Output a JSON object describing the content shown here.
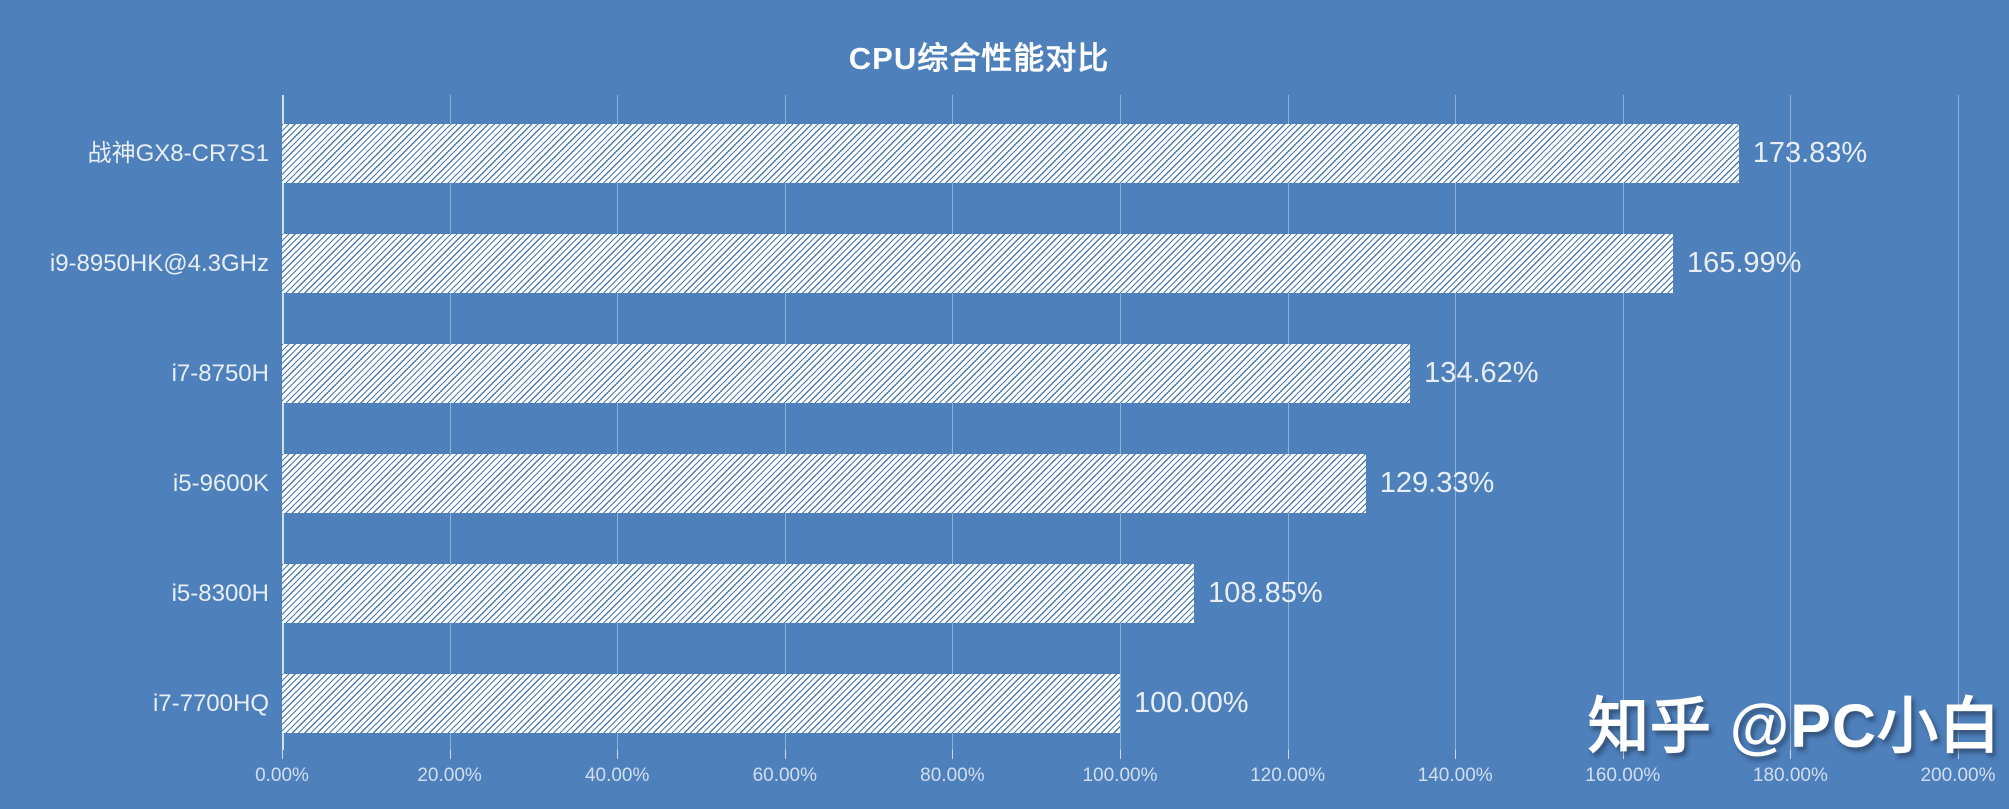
{
  "chart_data": {
    "type": "bar",
    "orientation": "horizontal",
    "title": "CPU综合性能对比",
    "categories": [
      "战神GX8-CR7S1",
      "i9-8950HK@4.3GHz",
      "i7-8750H",
      "i5-9600K",
      "i5-8300H",
      "i7-7700HQ"
    ],
    "values": [
      173.83,
      165.99,
      134.62,
      129.33,
      108.85,
      100.0
    ],
    "value_labels": [
      "173.83%",
      "165.99%",
      "134.62%",
      "129.33%",
      "108.85%",
      "100.00%"
    ],
    "xlabel": "",
    "ylabel": "",
    "xlim": [
      0,
      200
    ],
    "x_tick_labels": [
      "0.00%",
      "20.00%",
      "40.00%",
      "60.00%",
      "80.00%",
      "100.00%",
      "120.00%",
      "140.00%",
      "160.00%",
      "180.00%",
      "200.00%"
    ],
    "grid": true,
    "legend": false
  },
  "watermark": {
    "text": "知乎 @PC小白"
  },
  "colors": {
    "background": "#4e80bc",
    "bar_fill": "#ffffff",
    "bar_hatch": "#4a7bb0",
    "gridline": "rgba(255,255,255,0.38)",
    "title_text": "#ffffff",
    "label_text": "#e8eef6"
  }
}
